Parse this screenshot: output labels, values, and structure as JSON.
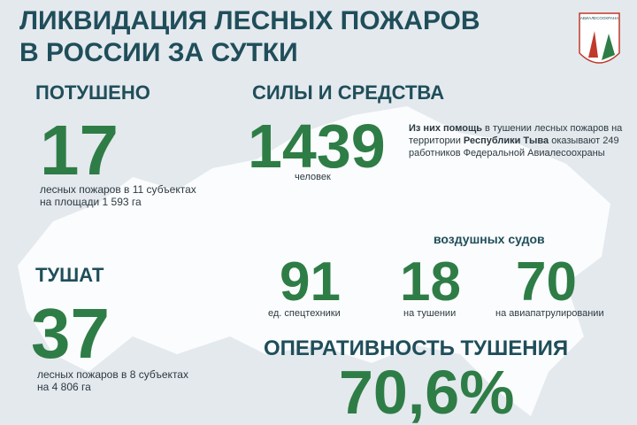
{
  "header": {
    "title_lines": [
      "ЛИКВИДАЦИЯ ЛЕСНЫХ ПОЖАРОВ",
      "В РОССИИ ЗА СУТКИ"
    ],
    "logo_text": "АВИАЛЕСООХРАНА"
  },
  "extinguished": {
    "heading": "ПОТУШЕНО",
    "number": "17",
    "lines": [
      "лесных пожаров в 11 субъектах",
      "на площади  1 593 га"
    ]
  },
  "forces": {
    "heading": "СИЛЫ И СРЕДСТВА",
    "number": "1439",
    "unit": "человек",
    "note_lines": [
      [
        "Из них помощь",
        " в тушении лесных пожаров на"
      ],
      [
        "территории ",
        "Республики Тыва",
        " оказывают 249"
      ],
      [
        "работников Федеральной Авиалесоохраны"
      ]
    ],
    "aircraft_heading": "воздушных судов",
    "items": [
      {
        "number": "91",
        "label": "ед. спецтехники"
      },
      {
        "number": "18",
        "label": "на тушении"
      },
      {
        "number": "70",
        "label": "на авиапатрулировании"
      }
    ]
  },
  "burning": {
    "heading": "ТУШАТ",
    "number": "37",
    "lines": [
      "лесных пожаров в 8 субъектах",
      "на 4 806 га"
    ]
  },
  "efficiency": {
    "heading": "ОПЕРАТИВНОСТЬ ТУШЕНИЯ",
    "number": "70,6%"
  }
}
